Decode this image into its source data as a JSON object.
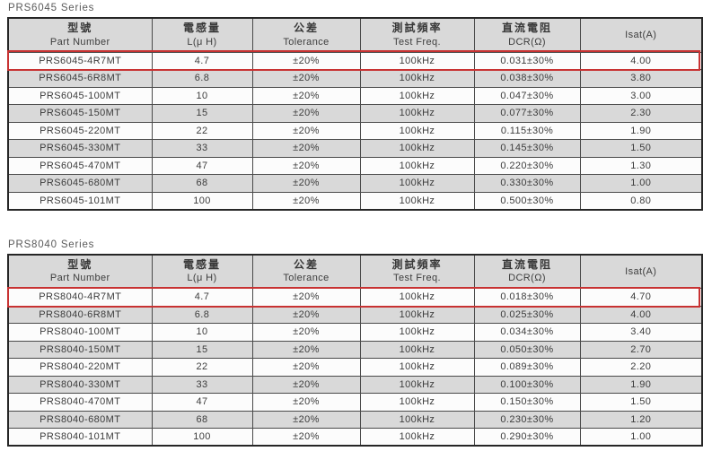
{
  "colors": {
    "highlight_red": "#c83232",
    "header_bg": "#d9d9d9",
    "row_alt_bg": "#d9d9d9",
    "row_bg": "#fcfcfc",
    "grid_line": "#4a4a4a",
    "outer_border": "#262626",
    "text": "#3c3c3c",
    "title_text": "#5a5a5a"
  },
  "tables": [
    {
      "title": "PRS6045 Series",
      "highlighted_row": 0,
      "columns": [
        {
          "zh": "型號",
          "en": "Part Number"
        },
        {
          "zh": "電感量",
          "en": "L(μ H)"
        },
        {
          "zh": "公差",
          "en": "Tolerance"
        },
        {
          "zh": "測試頻率",
          "en": "Test Freq."
        },
        {
          "zh": "直流電阻",
          "en": "DCR(Ω)"
        },
        {
          "zh": "",
          "en": "Isat(A)"
        }
      ],
      "rows": [
        [
          "PRS6045-4R7MT",
          "4.7",
          "±20%",
          "100kHz",
          "0.031±30%",
          "4.00"
        ],
        [
          "PRS6045-6R8MT",
          "6.8",
          "±20%",
          "100kHz",
          "0.038±30%",
          "3.80"
        ],
        [
          "PRS6045-100MT",
          "10",
          "±20%",
          "100kHz",
          "0.047±30%",
          "3.00"
        ],
        [
          "PRS6045-150MT",
          "15",
          "±20%",
          "100kHz",
          "0.077±30%",
          "2.30"
        ],
        [
          "PRS6045-220MT",
          "22",
          "±20%",
          "100kHz",
          "0.115±30%",
          "1.90"
        ],
        [
          "PRS6045-330MT",
          "33",
          "±20%",
          "100kHz",
          "0.145±30%",
          "1.50"
        ],
        [
          "PRS6045-470MT",
          "47",
          "±20%",
          "100kHz",
          "0.220±30%",
          "1.30"
        ],
        [
          "PRS6045-680MT",
          "68",
          "±20%",
          "100kHz",
          "0.330±30%",
          "1.00"
        ],
        [
          "PRS6045-101MT",
          "100",
          "±20%",
          "100kHz",
          "0.500±30%",
          "0.80"
        ]
      ]
    },
    {
      "title": "PRS8040 Series",
      "highlighted_row": 0,
      "columns": [
        {
          "zh": "型號",
          "en": "Part Number"
        },
        {
          "zh": "電感量",
          "en": "L(μ H)"
        },
        {
          "zh": "公差",
          "en": "Tolerance"
        },
        {
          "zh": "測試頻率",
          "en": "Test Freq."
        },
        {
          "zh": "直流電阻",
          "en": "DCR(Ω)"
        },
        {
          "zh": "",
          "en": "Isat(A)"
        }
      ],
      "rows": [
        [
          "PRS8040-4R7MT",
          "4.7",
          "±20%",
          "100kHz",
          "0.018±30%",
          "4.70"
        ],
        [
          "PRS8040-6R8MT",
          "6.8",
          "±20%",
          "100kHz",
          "0.025±30%",
          "4.00"
        ],
        [
          "PRS8040-100MT",
          "10",
          "±20%",
          "100kHz",
          "0.034±30%",
          "3.40"
        ],
        [
          "PRS8040-150MT",
          "15",
          "±20%",
          "100kHz",
          "0.050±30%",
          "2.70"
        ],
        [
          "PRS8040-220MT",
          "22",
          "±20%",
          "100kHz",
          "0.089±30%",
          "2.20"
        ],
        [
          "PRS8040-330MT",
          "33",
          "±20%",
          "100kHz",
          "0.100±30%",
          "1.90"
        ],
        [
          "PRS8040-470MT",
          "47",
          "±20%",
          "100kHz",
          "0.150±30%",
          "1.50"
        ],
        [
          "PRS8040-680MT",
          "68",
          "±20%",
          "100kHz",
          "0.230±30%",
          "1.20"
        ],
        [
          "PRS8040-101MT",
          "100",
          "±20%",
          "100kHz",
          "0.290±30%",
          "1.00"
        ]
      ]
    }
  ]
}
